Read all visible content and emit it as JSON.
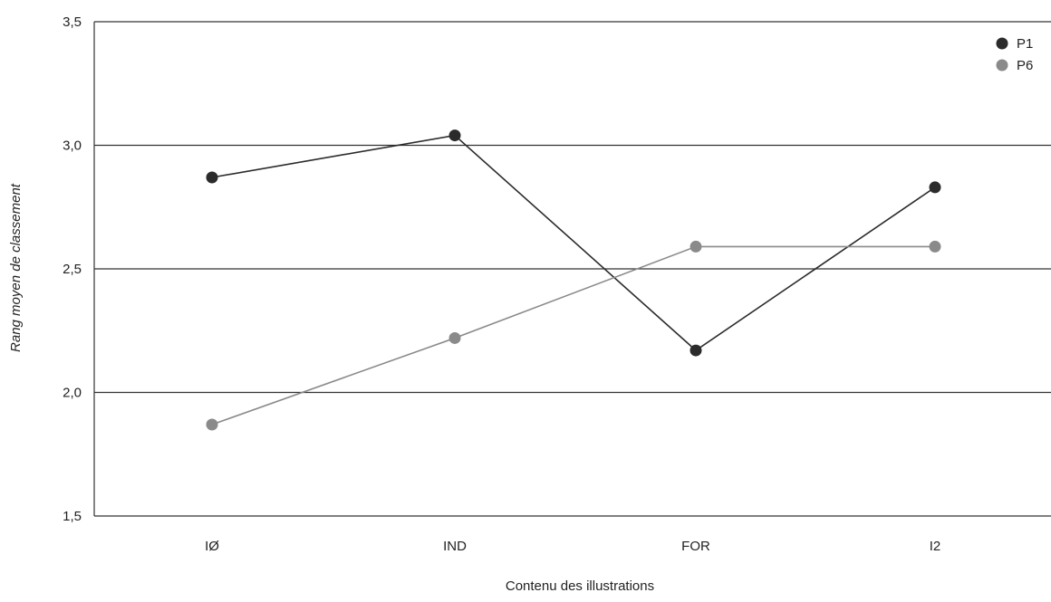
{
  "chart_data": {
    "type": "line",
    "title": "",
    "xlabel": "Contenu des illustrations",
    "ylabel": "Rang moyen de classement",
    "categories": [
      "IØ",
      "IND",
      "FOR",
      "I2"
    ],
    "ylim": [
      1.5,
      3.5
    ],
    "yticks": [
      1.5,
      2.0,
      2.5,
      3.0,
      3.5
    ],
    "ytick_labels": [
      "1,5",
      "2,0",
      "2,5",
      "3,0",
      "3,5"
    ],
    "grid": "horizontal",
    "legend_position": "top-right",
    "series": [
      {
        "name": "P1",
        "values": [
          2.87,
          3.04,
          2.17,
          2.83
        ],
        "color": "#2b2b2b"
      },
      {
        "name": "P6",
        "values": [
          1.87,
          2.22,
          2.59,
          2.59
        ],
        "color": "#8a8a8a"
      }
    ]
  }
}
